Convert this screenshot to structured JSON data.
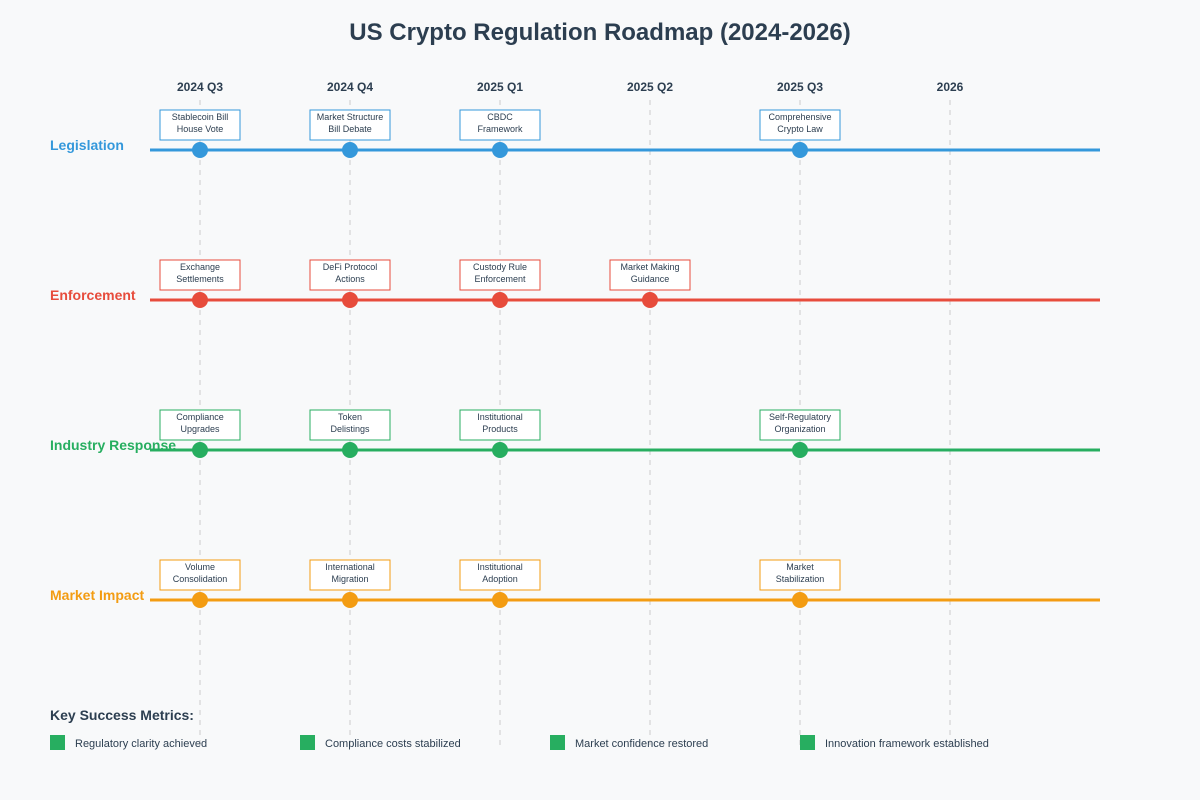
{
  "title": "US Crypto Regulation Roadmap (2024-2026)",
  "periods": [
    "2024 Q3",
    "2024 Q4",
    "2025 Q1",
    "2025 Q2",
    "2025 Q3",
    "2026"
  ],
  "tracks": [
    {
      "name": "Legislation",
      "color": "#3498db",
      "milestones": [
        {
          "period": 0,
          "lines": [
            "Stablecoin Bill",
            "House Vote"
          ]
        },
        {
          "period": 1,
          "lines": [
            "Market Structure",
            "Bill Debate"
          ]
        },
        {
          "period": 2,
          "lines": [
            "CBDC",
            "Framework"
          ]
        },
        {
          "period": 4,
          "lines": [
            "Comprehensive",
            "Crypto Law"
          ]
        }
      ]
    },
    {
      "name": "Enforcement",
      "color": "#e74c3c",
      "milestones": [
        {
          "period": 0,
          "lines": [
            "Exchange",
            "Settlements"
          ]
        },
        {
          "period": 1,
          "lines": [
            "DeFi Protocol",
            "Actions"
          ]
        },
        {
          "period": 2,
          "lines": [
            "Custody Rule",
            "Enforcement"
          ]
        },
        {
          "period": 3,
          "lines": [
            "Market Making",
            "Guidance"
          ]
        }
      ]
    },
    {
      "name": "Industry Response",
      "color": "#27ae60",
      "milestones": [
        {
          "period": 0,
          "lines": [
            "Compliance",
            "Upgrades"
          ]
        },
        {
          "period": 1,
          "lines": [
            "Token",
            "Delistings"
          ]
        },
        {
          "period": 2,
          "lines": [
            "Institutional",
            "Products"
          ]
        },
        {
          "period": 4,
          "lines": [
            "Self-Regulatory",
            "Organization"
          ]
        }
      ]
    },
    {
      "name": "Market Impact",
      "color": "#f39c12",
      "milestones": [
        {
          "period": 0,
          "lines": [
            "Volume",
            "Consolidation"
          ]
        },
        {
          "period": 1,
          "lines": [
            "International",
            "Migration"
          ]
        },
        {
          "period": 2,
          "lines": [
            "Institutional",
            "Adoption"
          ]
        },
        {
          "period": 4,
          "lines": [
            "Market",
            "Stabilization"
          ]
        }
      ]
    }
  ],
  "metrics": {
    "heading": "Key Success Metrics:",
    "color": "#27ae60",
    "items": [
      "Regulatory clarity achieved",
      "Compliance costs stabilized",
      "Market confidence restored",
      "Innovation framework established"
    ]
  }
}
